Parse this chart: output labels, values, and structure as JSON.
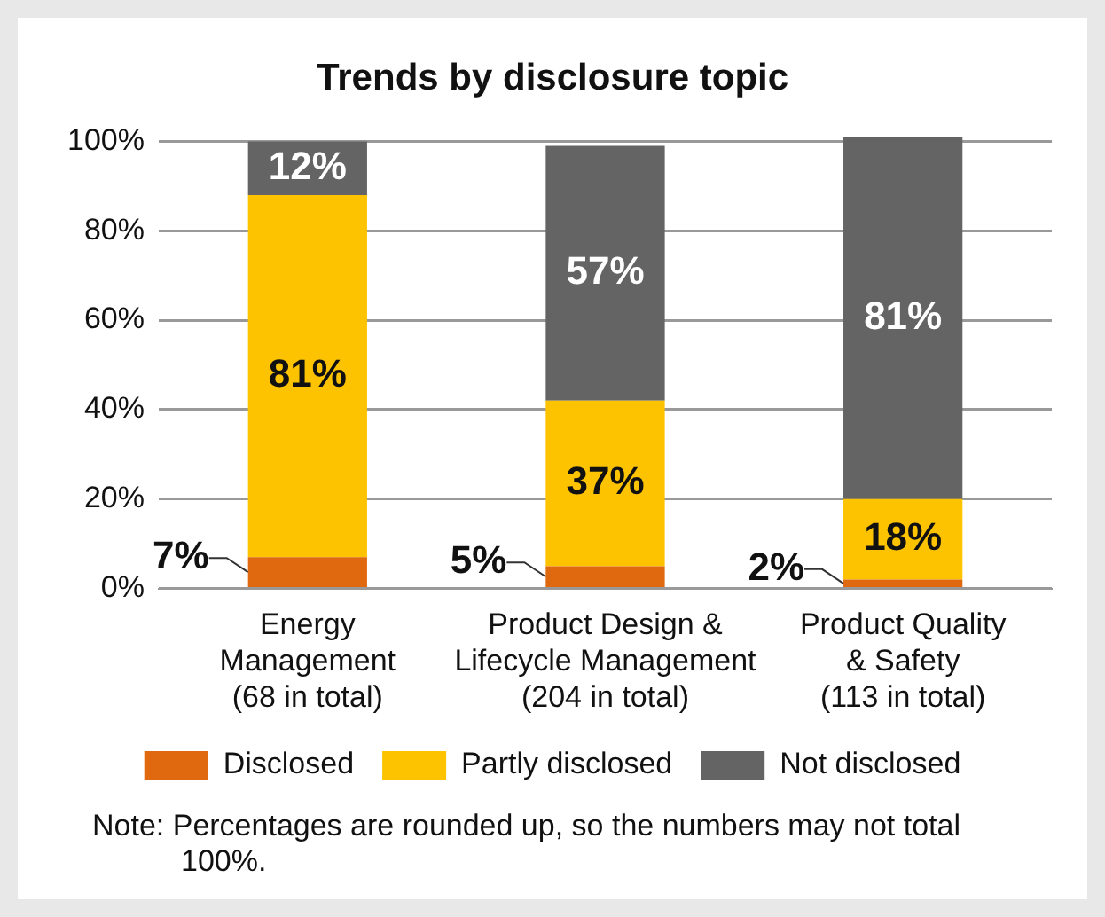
{
  "chart_data": {
    "type": "bar",
    "title": "Trends by disclosure topic",
    "categories": [
      "Energy\nManagement\n(68 in total)",
      "Product Design &\nLifecycle Management\n(204 in total)",
      "Product Quality\n& Safety\n(113 in total)"
    ],
    "stacked": true,
    "ylim": [
      0,
      101
    ],
    "yticks": [
      {
        "value": 0,
        "label": "0%"
      },
      {
        "value": 20,
        "label": "20%"
      },
      {
        "value": 40,
        "label": "40%"
      },
      {
        "value": 60,
        "label": "60%"
      },
      {
        "value": 80,
        "label": "80%"
      },
      {
        "value": 100,
        "label": "100%"
      }
    ],
    "grid": "y",
    "legend": "bottom",
    "series": [
      {
        "name": "Disclosed",
        "color": "#e0680f",
        "values": [
          7,
          5,
          2
        ],
        "value_labels": [
          "7%",
          "5%",
          "2%"
        ]
      },
      {
        "name": "Partly disclosed",
        "color": "#fdc300",
        "values": [
          81,
          37,
          18
        ],
        "value_labels": [
          "81%",
          "37%",
          "18%"
        ]
      },
      {
        "name": "Not disclosed",
        "color": "#646464",
        "values": [
          12,
          57,
          81
        ],
        "value_labels": [
          "12%",
          "57%",
          "81%"
        ]
      }
    ],
    "annotations": [
      "Note: Percentages are rounded up, so the numbers may not total 100%."
    ]
  }
}
